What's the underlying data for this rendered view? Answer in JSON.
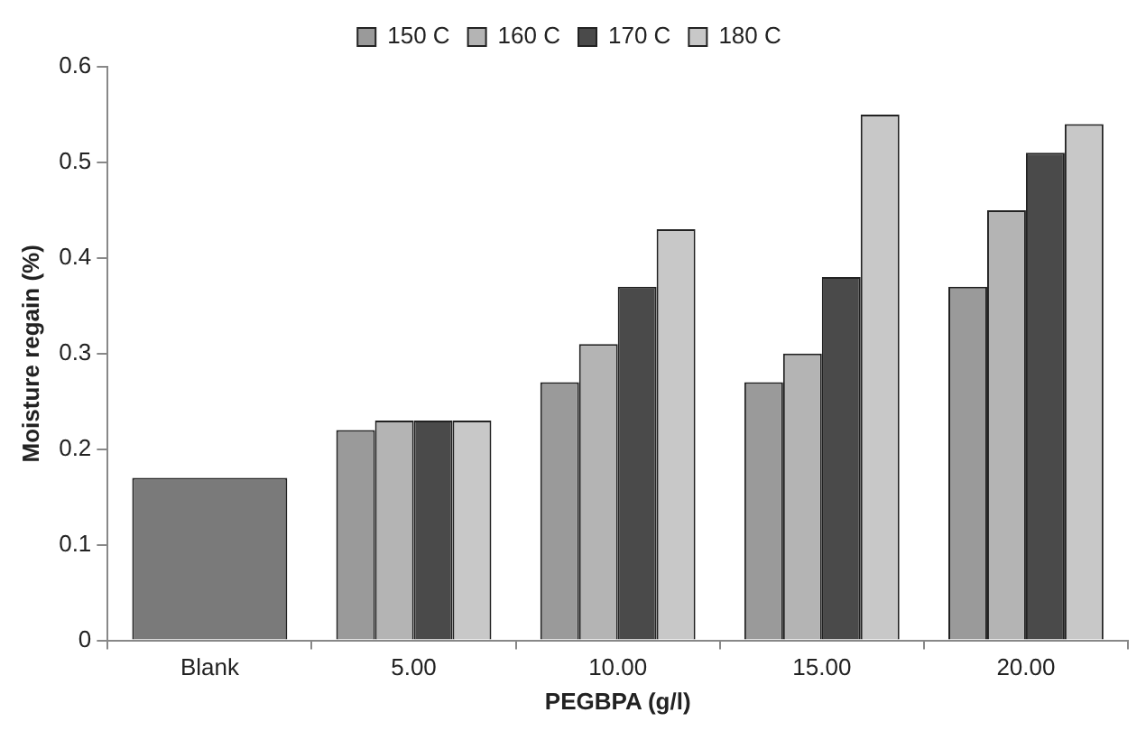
{
  "chart_data": {
    "type": "bar",
    "xlabel": "PEGBPA (g/l)",
    "ylabel": "Moisture regain (%)",
    "categories": [
      "Blank",
      "5.00",
      "10.00",
      "15.00",
      "20.00"
    ],
    "series": [
      {
        "color": "#7a7a7a",
        "values": [
          0.17,
          null,
          null,
          null,
          null
        ]
      },
      {
        "name": "150 C",
        "color": "#9a9a9a",
        "values": [
          null,
          0.22,
          0.27,
          0.27,
          0.37
        ]
      },
      {
        "name": "160 C",
        "color": "#b4b4b4",
        "values": [
          null,
          0.23,
          0.31,
          0.3,
          0.45
        ]
      },
      {
        "name": "170 C",
        "color": "#4a4a4a",
        "values": [
          null,
          0.23,
          0.37,
          0.38,
          0.51
        ]
      },
      {
        "name": "180 C",
        "color": "#c8c8c8",
        "values": [
          null,
          0.23,
          0.43,
          0.55,
          0.54
        ]
      }
    ],
    "ylim": [
      0,
      0.6
    ],
    "yticks": [
      0,
      0.1,
      0.2,
      0.3,
      0.4,
      0.5,
      0.6
    ],
    "grid": false,
    "legend": "top"
  }
}
